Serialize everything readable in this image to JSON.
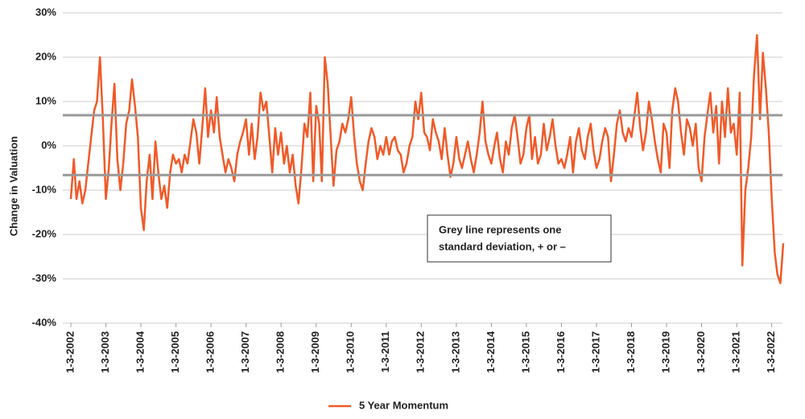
{
  "chart_data": {
    "type": "line",
    "y_label": "Change in Valuation",
    "annotation": [
      "Grey line represents one",
      "standard deviation, + or –"
    ],
    "ylim": [
      -40,
      30
    ],
    "yticks": [
      {
        "value": -40,
        "label": "-40%"
      },
      {
        "value": -30,
        "label": "-30%"
      },
      {
        "value": -20,
        "label": "-20%"
      },
      {
        "value": -10,
        "label": "-10%"
      },
      {
        "value": 0,
        "label": "0%"
      },
      {
        "value": 10,
        "label": "10%"
      },
      {
        "value": 20,
        "label": "20%"
      },
      {
        "value": 30,
        "label": "30%"
      }
    ],
    "grid": true,
    "xlim": [
      "2002-01-03",
      "2022-05-20"
    ],
    "xticks": [
      {
        "value": "2002-01-03",
        "label": "1-3-2002"
      },
      {
        "value": "2003-01-03",
        "label": "1-3-2003"
      },
      {
        "value": "2004-01-03",
        "label": "1-3-2004"
      },
      {
        "value": "2005-01-03",
        "label": "1-3-2005"
      },
      {
        "value": "2006-01-03",
        "label": "1-3-2006"
      },
      {
        "value": "2007-01-03",
        "label": "1-3-2007"
      },
      {
        "value": "2008-01-03",
        "label": "1-3-2008"
      },
      {
        "value": "2009-01-03",
        "label": "1-3-2009"
      },
      {
        "value": "2010-01-03",
        "label": "1-3-2010"
      },
      {
        "value": "2011-01-03",
        "label": "1-3-2011"
      },
      {
        "value": "2012-01-03",
        "label": "1-3-2012"
      },
      {
        "value": "2013-01-03",
        "label": "1-3-2013"
      },
      {
        "value": "2014-01-03",
        "label": "1-3-2014"
      },
      {
        "value": "2015-01-03",
        "label": "1-3-2015"
      },
      {
        "value": "2016-01-03",
        "label": "1-3-2016"
      },
      {
        "value": "2017-01-03",
        "label": "1-3-2017"
      },
      {
        "value": "2018-01-03",
        "label": "1-3-2018"
      },
      {
        "value": "2019-01-03",
        "label": "1-3-2019"
      },
      {
        "value": "2020-01-03",
        "label": "1-3-2020"
      },
      {
        "value": "2021-01-03",
        "label": "1-3-2021"
      },
      {
        "value": "2022-01-03",
        "label": "1-3-2022"
      }
    ],
    "std_lines": [
      6.9,
      -6.6
    ],
    "std_color": "#999999",
    "x": [
      "2002-01-03",
      "2002-02-03",
      "2002-03-03",
      "2002-04-03",
      "2002-05-03",
      "2002-06-03",
      "2002-07-03",
      "2002-08-03",
      "2002-09-03",
      "2002-10-03",
      "2002-11-03",
      "2002-12-03",
      "2003-01-03",
      "2003-02-03",
      "2003-03-03",
      "2003-04-03",
      "2003-05-03",
      "2003-06-03",
      "2003-07-03",
      "2003-08-03",
      "2003-09-03",
      "2003-10-03",
      "2003-11-03",
      "2003-12-03",
      "2004-01-03",
      "2004-02-03",
      "2004-03-03",
      "2004-04-03",
      "2004-05-03",
      "2004-06-03",
      "2004-07-03",
      "2004-08-03",
      "2004-09-03",
      "2004-10-03",
      "2004-11-03",
      "2004-12-03",
      "2005-01-03",
      "2005-02-03",
      "2005-03-03",
      "2005-04-03",
      "2005-05-03",
      "2005-06-03",
      "2005-07-03",
      "2005-08-03",
      "2005-09-03",
      "2005-10-03",
      "2005-11-03",
      "2005-12-03",
      "2006-01-03",
      "2006-02-03",
      "2006-03-03",
      "2006-04-03",
      "2006-05-03",
      "2006-06-03",
      "2006-07-03",
      "2006-08-03",
      "2006-09-03",
      "2006-10-03",
      "2006-11-03",
      "2006-12-03",
      "2007-01-03",
      "2007-02-03",
      "2007-03-03",
      "2007-04-03",
      "2007-05-03",
      "2007-06-03",
      "2007-07-03",
      "2007-08-03",
      "2007-09-03",
      "2007-10-03",
      "2007-11-03",
      "2007-12-03",
      "2008-01-03",
      "2008-02-03",
      "2008-03-03",
      "2008-04-03",
      "2008-05-03",
      "2008-06-03",
      "2008-07-03",
      "2008-08-03",
      "2008-09-03",
      "2008-10-03",
      "2008-11-03",
      "2008-12-03",
      "2009-01-03",
      "2009-02-03",
      "2009-03-03",
      "2009-04-03",
      "2009-05-03",
      "2009-06-03",
      "2009-07-03",
      "2009-08-03",
      "2009-09-03",
      "2009-10-03",
      "2009-11-03",
      "2009-12-03",
      "2010-01-03",
      "2010-02-03",
      "2010-03-03",
      "2010-04-03",
      "2010-05-03",
      "2010-06-03",
      "2010-07-03",
      "2010-08-03",
      "2010-09-03",
      "2010-10-03",
      "2010-11-03",
      "2010-12-03",
      "2011-01-03",
      "2011-02-03",
      "2011-03-03",
      "2011-04-03",
      "2011-05-03",
      "2011-06-03",
      "2011-07-03",
      "2011-08-03",
      "2011-09-03",
      "2011-10-03",
      "2011-11-03",
      "2011-12-03",
      "2012-01-03",
      "2012-02-03",
      "2012-03-03",
      "2012-04-03",
      "2012-05-03",
      "2012-06-03",
      "2012-07-03",
      "2012-08-03",
      "2012-09-03",
      "2012-10-03",
      "2012-11-03",
      "2012-12-03",
      "2013-01-03",
      "2013-02-03",
      "2013-03-03",
      "2013-04-03",
      "2013-05-03",
      "2013-06-03",
      "2013-07-03",
      "2013-08-03",
      "2013-09-03",
      "2013-10-03",
      "2013-11-03",
      "2013-12-03",
      "2014-01-03",
      "2014-02-03",
      "2014-03-03",
      "2014-04-03",
      "2014-05-03",
      "2014-06-03",
      "2014-07-03",
      "2014-08-03",
      "2014-09-03",
      "2014-10-03",
      "2014-11-03",
      "2014-12-03",
      "2015-01-03",
      "2015-02-03",
      "2015-03-03",
      "2015-04-03",
      "2015-05-03",
      "2015-06-03",
      "2015-07-03",
      "2015-08-03",
      "2015-09-03",
      "2015-10-03",
      "2015-11-03",
      "2015-12-03",
      "2016-01-03",
      "2016-02-03",
      "2016-03-03",
      "2016-04-03",
      "2016-05-03",
      "2016-06-03",
      "2016-07-03",
      "2016-08-03",
      "2016-09-03",
      "2016-10-03",
      "2016-11-03",
      "2016-12-03",
      "2017-01-03",
      "2017-02-03",
      "2017-03-03",
      "2017-04-03",
      "2017-05-03",
      "2017-06-03",
      "2017-07-03",
      "2017-08-03",
      "2017-09-03",
      "2017-10-03",
      "2017-11-03",
      "2017-12-03",
      "2018-01-03",
      "2018-02-03",
      "2018-03-03",
      "2018-04-03",
      "2018-05-03",
      "2018-06-03",
      "2018-07-03",
      "2018-08-03",
      "2018-09-03",
      "2018-10-03",
      "2018-11-03",
      "2018-12-03",
      "2019-01-03",
      "2019-02-03",
      "2019-03-03",
      "2019-04-03",
      "2019-05-03",
      "2019-06-03",
      "2019-07-03",
      "2019-08-03",
      "2019-09-03",
      "2019-10-03",
      "2019-11-03",
      "2019-12-03",
      "2020-01-03",
      "2020-02-03",
      "2020-03-03",
      "2020-04-03",
      "2020-05-03",
      "2020-06-03",
      "2020-07-03",
      "2020-08-03",
      "2020-09-03",
      "2020-10-03",
      "2020-11-03",
      "2020-12-03",
      "2021-01-03",
      "2021-02-03",
      "2021-03-03",
      "2021-04-03",
      "2021-05-03",
      "2021-06-03",
      "2021-07-03",
      "2021-08-03",
      "2021-09-03",
      "2021-10-03",
      "2021-11-03",
      "2021-12-03",
      "2022-01-03",
      "2022-02-03",
      "2022-03-03",
      "2022-04-03",
      "2022-05-03"
    ],
    "series": [
      {
        "name": "5 Year Momentum",
        "color": "#f05a28",
        "values": [
          -12,
          -3,
          -12,
          -8,
          -13,
          -10,
          -4,
          2,
          8,
          10,
          20,
          6,
          -12,
          -5,
          5,
          14,
          -3,
          -10,
          -4,
          5,
          8,
          15,
          9,
          2,
          -14,
          -19,
          -8,
          -2,
          -12,
          1,
          -6,
          -12,
          -9,
          -14,
          -6,
          -2,
          -4,
          -3,
          -6,
          -2,
          -4,
          1,
          6,
          3,
          -4,
          4,
          13,
          2,
          8,
          3,
          11,
          2,
          -2,
          -6,
          -3,
          -5,
          -8,
          -2,
          1,
          3,
          6,
          -2,
          5,
          -3,
          2,
          12,
          8,
          10,
          2,
          -6,
          4,
          -2,
          3,
          -4,
          0,
          -6,
          -2,
          -9,
          -13,
          -5,
          5,
          2,
          12,
          -8,
          9,
          5,
          -8,
          20,
          14,
          2,
          -9,
          -1,
          1,
          5,
          3,
          6,
          11,
          2,
          -4,
          -8,
          -10,
          -4,
          1,
          4,
          2,
          -3,
          0,
          -2,
          2,
          -2,
          1,
          2,
          -1,
          -2,
          -6,
          -4,
          0,
          2,
          10,
          6,
          12,
          3,
          2,
          -1,
          6,
          3,
          1,
          -3,
          4,
          -2,
          -7,
          -4,
          2,
          -3,
          -5,
          -2,
          1,
          -3,
          -6,
          -2,
          3,
          10,
          1,
          -2,
          -4,
          0,
          3,
          -3,
          -6,
          1,
          -2,
          4,
          7,
          2,
          -4,
          -2,
          4,
          7,
          -3,
          2,
          -4,
          -2,
          5,
          -1,
          2,
          6,
          0,
          -4,
          -3,
          -5,
          -2,
          2,
          -6,
          1,
          4,
          -1,
          -3,
          2,
          5,
          -1,
          -5,
          -3,
          1,
          4,
          2,
          -8,
          -2,
          5,
          8,
          3,
          1,
          4,
          2,
          7,
          12,
          4,
          -1,
          3,
          10,
          6,
          1,
          -3,
          -6,
          5,
          3,
          -5,
          8,
          13,
          10,
          3,
          -2,
          6,
          4,
          0,
          5,
          -5,
          -8,
          2,
          7,
          12,
          3,
          9,
          -4,
          10,
          2,
          13,
          3,
          5,
          -2,
          12,
          -27,
          -10,
          -5,
          2,
          16,
          25,
          6,
          21,
          13,
          3,
          -12,
          -24,
          -29,
          -31,
          -22
        ]
      }
    ]
  }
}
